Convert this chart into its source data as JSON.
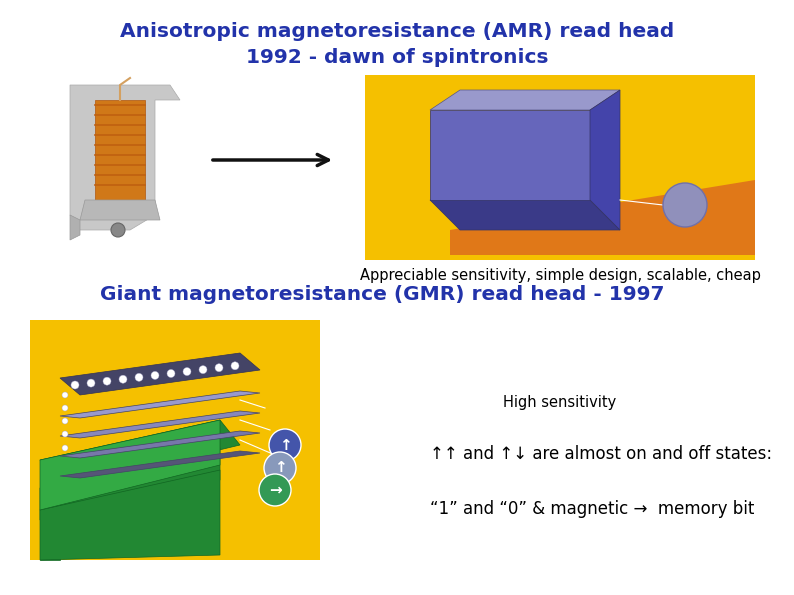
{
  "background_color": "#ffffff",
  "title1": "Anisotropic magnetoresistance (AMR) read head",
  "title2": "1992 - dawn of spintronics",
  "title_color": "#2233aa",
  "title_fontsize": 14.5,
  "subtitle1": "Appreciable sensitivity, simple design, scalable, cheap",
  "subtitle1_color": "#000000",
  "subtitle1_fontsize": 10.5,
  "section2_title": "Giant magnetoresistance (GMR) read head - 1997",
  "section2_color": "#2233aa",
  "section2_fontsize": 14.5,
  "text_high_sens": "High sensitivity",
  "text_high_sens_color": "#000000",
  "text_high_sens_fontsize": 10.5,
  "text_arrows": "↑↑ and ↑↓ are almost on and off states:",
  "text_arrows_color": "#000000",
  "text_arrows_fontsize": 12,
  "text_memory": "“1” and “0” & magnetic →  memory bit",
  "text_memory_color": "#000000",
  "text_memory_fontsize": 12,
  "arrow_color": "#111111",
  "yellow_bg": "#f5c000",
  "orange_stripe": "#e07818",
  "cube_front": "#6666bb",
  "cube_top": "#9999cc",
  "cube_right": "#4444aa",
  "cube_shadow": "#3a3a88",
  "green_block": "#2a8830",
  "green_light": "#44bb44",
  "purple_slab1": "#7777aa",
  "purple_slab2": "#8888bb",
  "purple_slab3": "#9999cc",
  "dark_slab": "#555577",
  "circ_blue": "#4455aa",
  "circ_teal": "#339955",
  "circ_light": "#8899bb"
}
